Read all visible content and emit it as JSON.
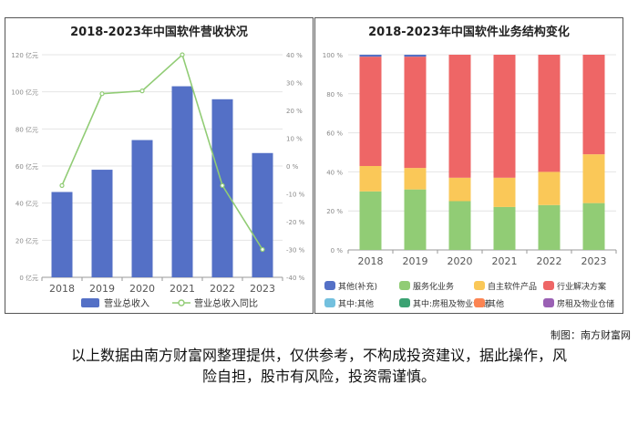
{
  "chart_data": [
    {
      "type": "bar",
      "title": "2018-2023年中国软件营收状况",
      "categories": [
        "2018",
        "2019",
        "2020",
        "2021",
        "2022",
        "2023"
      ],
      "series": [
        {
          "name": "营业总收入",
          "type": "bar",
          "axis": "left",
          "values": [
            46,
            58,
            74,
            103,
            96,
            67
          ]
        },
        {
          "name": "营业总收入同比",
          "type": "line",
          "axis": "right",
          "values": [
            -7,
            26,
            27,
            40,
            -7,
            -30
          ]
        }
      ],
      "y_left": {
        "ylim": [
          0,
          120
        ],
        "ticks": [
          "0 亿元",
          "20 亿元",
          "40 亿元",
          "60 亿元",
          "80 亿元",
          "100 亿元",
          "120 亿元"
        ]
      },
      "y_right": {
        "ylim": [
          -40,
          40
        ],
        "ticks": [
          "-40 %",
          "-30 %",
          "-20 %",
          "-10 %",
          "0 %",
          "10 %",
          "20 %",
          "30 %",
          "40 %"
        ]
      },
      "legend_position": "bottom",
      "colors": {
        "bar": "#5470c6",
        "line": "#91cc75"
      }
    },
    {
      "type": "stacked-bar",
      "title": "2018-2023年中国软件业务结构变化",
      "categories": [
        "2018",
        "2019",
        "2020",
        "2021",
        "2022",
        "2023"
      ],
      "series": [
        {
          "name": "服务化业务",
          "color": "#91cc75",
          "values": [
            30,
            31,
            25,
            22,
            23,
            24
          ]
        },
        {
          "name": "自主软件产品",
          "color": "#fac858",
          "values": [
            13,
            11,
            12,
            15,
            17,
            25
          ]
        },
        {
          "name": "行业解决方案",
          "color": "#ee6666",
          "values": [
            56,
            57,
            63,
            63,
            60,
            51
          ]
        },
        {
          "name": "其他(补充)",
          "color": "#5470c6",
          "values": [
            1,
            1,
            0,
            0,
            0,
            0
          ]
        },
        {
          "name": "其中:其他",
          "color": "#73c0de",
          "values": [
            0,
            0,
            0,
            0,
            0,
            0
          ]
        },
        {
          "name": "其中:房租及物业仓储",
          "color": "#3ba272",
          "values": [
            0,
            0,
            0,
            0,
            0,
            0
          ]
        },
        {
          "name": "其他",
          "color": "#fc8452",
          "values": [
            0,
            0,
            0,
            0,
            0,
            0
          ]
        },
        {
          "name": "房租及物业仓储",
          "color": "#9a60b4",
          "values": [
            0,
            0,
            0,
            0,
            0,
            0
          ]
        }
      ],
      "legend_order": [
        3,
        0,
        1,
        2,
        4,
        5,
        6,
        7
      ],
      "y": {
        "ylim": [
          0,
          100
        ],
        "ticks": [
          "0 %",
          "20 %",
          "40 %",
          "60 %",
          "80 %",
          "100 %"
        ]
      },
      "legend_position": "bottom"
    }
  ],
  "credit": "制图：南方财富网",
  "disclaimer": [
    "以上数据由南方财富网整理提供，仅供参考，不构成投资建议，据此操作，风",
    "险自担，股市有风险，投资需谨慎。"
  ]
}
